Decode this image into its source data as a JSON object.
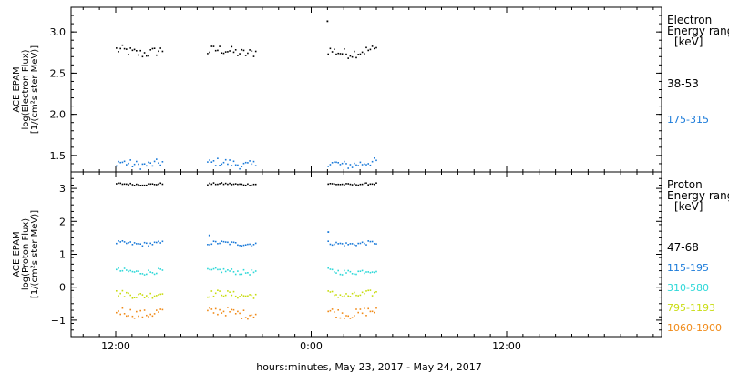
{
  "chart_data": [
    {
      "type": "scatter",
      "panel": "electron",
      "ylabel_lines": [
        "ACE EPAM",
        "log(Electron Flux)",
        "[1/(cm²s ster MeV)]"
      ],
      "ylim": [
        1.3,
        3.3
      ],
      "yticks": [
        1.5,
        2.0,
        2.5,
        3.0
      ],
      "ytick_labels": [
        "1.5",
        "2.0",
        "2.5",
        "3.0"
      ],
      "legend_title": [
        "Electron",
        "Energy ranges",
        "[keV]"
      ],
      "series": [
        {
          "name": "38-53",
          "color": "#000000",
          "mean": 2.77,
          "spread": 0.06,
          "segments": [
            [
              6.0,
              8.9
            ],
            [
              11.6,
              14.6
            ],
            [
              19.0,
              22.0
            ]
          ],
          "extra_points": [
            [
              18.95,
              3.14
            ]
          ]
        },
        {
          "name": "175-315",
          "color": "#1a7ad9",
          "mean": 1.41,
          "spread": 0.05,
          "segments": [
            [
              6.0,
              8.9
            ],
            [
              11.6,
              14.6
            ],
            [
              19.0,
              22.0
            ]
          ],
          "extra_points": []
        }
      ]
    },
    {
      "type": "scatter",
      "panel": "proton",
      "ylabel_lines": [
        "ACE EPAM",
        "log(Proton Flux)",
        "[1/(cm²s ster MeV)]"
      ],
      "ylim": [
        -1.5,
        3.5
      ],
      "yticks": [
        -1,
        0,
        1,
        2,
        3
      ],
      "ytick_labels": [
        "−1",
        "0",
        "1",
        "2",
        "3"
      ],
      "legend_title": [
        "Proton",
        "Energy ranges",
        "[keV]"
      ],
      "series": [
        {
          "name": "47-68",
          "color": "#000000",
          "mean": 3.15,
          "spread": 0.03,
          "segments": [
            [
              6.0,
              8.9
            ],
            [
              11.6,
              14.6
            ],
            [
              19.0,
              22.0
            ]
          ],
          "extra_points": []
        },
        {
          "name": "115-195",
          "color": "#1a7ad9",
          "mean": 1.35,
          "spread": 0.06,
          "segments": [
            [
              6.0,
              8.9
            ],
            [
              11.6,
              14.6
            ],
            [
              19.0,
              22.0
            ]
          ],
          "extra_points": [
            [
              11.7,
              1.6
            ],
            [
              19.0,
              1.7
            ]
          ]
        },
        {
          "name": "310-580",
          "color": "#2ed8d8",
          "mean": 0.5,
          "spread": 0.08,
          "segments": [
            [
              6.0,
              8.9
            ],
            [
              11.6,
              14.6
            ],
            [
              19.0,
              22.0
            ]
          ],
          "extra_points": []
        },
        {
          "name": "795-1193",
          "color": "#c8dc10",
          "mean": -0.2,
          "spread": 0.1,
          "segments": [
            [
              6.0,
              8.9
            ],
            [
              11.6,
              14.6
            ],
            [
              19.0,
              22.0
            ]
          ],
          "extra_points": []
        },
        {
          "name": "1060-1900",
          "color": "#f08a18",
          "mean": -0.75,
          "spread": 0.14,
          "segments": [
            [
              6.0,
              8.9
            ],
            [
              11.6,
              14.6
            ],
            [
              19.0,
              22.0
            ]
          ],
          "extra_points": []
        }
      ]
    }
  ],
  "x_axis": {
    "xlim": [
      7.0,
      18.6
    ],
    "xticks": [
      12,
      24,
      36
    ],
    "xtick_labels": [
      "12:00",
      "0:00",
      "12:00"
    ],
    "xlabel": "hours:minutes, May 23, 2017 - May 24, 2017"
  }
}
